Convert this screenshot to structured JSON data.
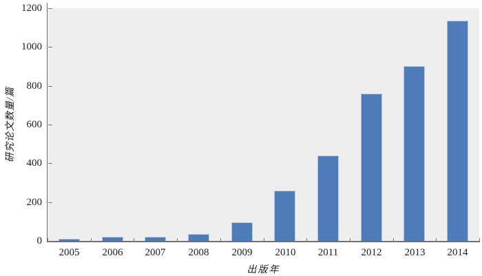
{
  "chart_data": {
    "type": "bar",
    "title": "",
    "categories": [
      "2005",
      "2006",
      "2007",
      "2008",
      "2009",
      "2010",
      "2011",
      "2012",
      "2013",
      "2014"
    ],
    "values": [
      10,
      20,
      22,
      35,
      95,
      260,
      440,
      760,
      900,
      1135
    ],
    "xlabel": "出版年",
    "ylabel": "研究论文数量/篇",
    "ylim": [
      0,
      1200
    ],
    "yticks": [
      0,
      200,
      400,
      600,
      800,
      1000,
      1200
    ],
    "grid": false,
    "legend_position": "none",
    "colors": {
      "bar_fill": "#4d7cba",
      "bar_border": "#b5c8e0",
      "plot_background": "#edefee",
      "axis": "#6e6e6e",
      "tick": "#7a7a7a",
      "text": "#1c1c1c"
    }
  }
}
